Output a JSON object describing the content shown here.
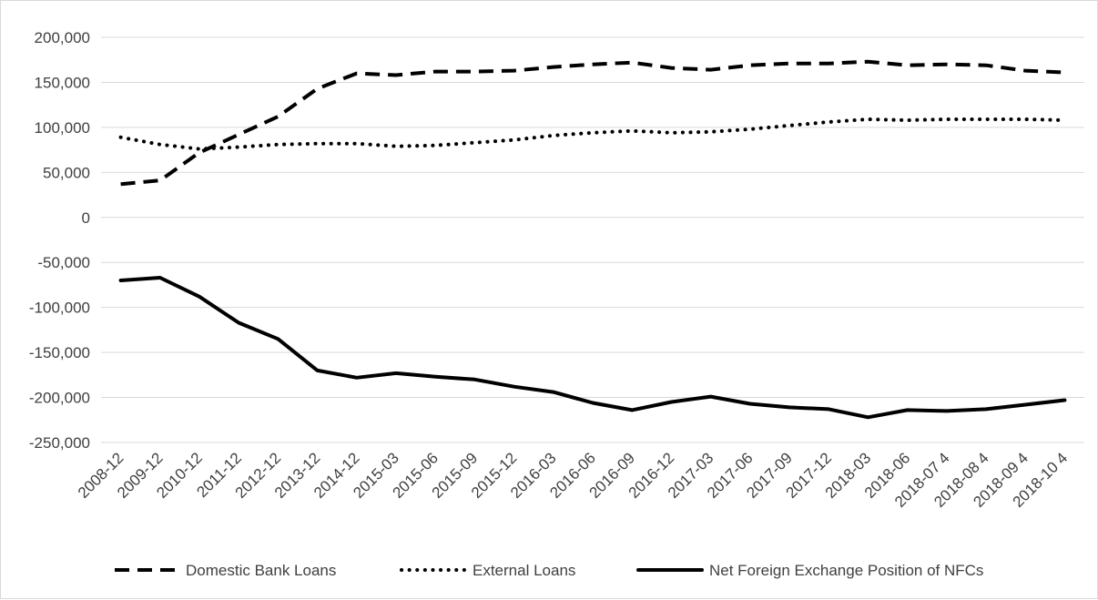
{
  "chart_data": {
    "type": "line",
    "title": "",
    "xlabel": "",
    "ylabel": "",
    "ylim": [
      -250000,
      200000
    ],
    "yticks": [
      200000,
      150000,
      100000,
      50000,
      0,
      -50000,
      -100000,
      -150000,
      -200000,
      -250000
    ],
    "ytick_labels": [
      "200,000",
      "150,000",
      "100,000",
      "50,000",
      "0",
      "-50,000",
      "-100,000",
      "-150,000",
      "-200,000",
      "-250,000"
    ],
    "grid": true,
    "legend_position": "bottom",
    "categories": [
      "2008-12",
      "2009-12",
      "2010-12",
      "2011-12",
      "2012-12",
      "2013-12",
      "2014-12",
      "2015-03",
      "2015-06",
      "2015-09",
      "2015-12",
      "2016-03",
      "2016-06",
      "2016-09",
      "2016-12",
      "2017-03",
      "2017-06",
      "2017-09",
      "2017-12",
      "2018-03",
      "2018-06",
      "2018-07 4",
      "2018-08 4",
      "2018-09 4",
      "2018-10 4"
    ],
    "series": [
      {
        "name": "Domestic Bank Loans",
        "style": "dashed",
        "color": "#000000",
        "values": [
          37000,
          41000,
          72000,
          92000,
          112000,
          143000,
          160000,
          158000,
          162000,
          162000,
          163000,
          167000,
          170000,
          172000,
          166000,
          164000,
          169000,
          171000,
          171000,
          173000,
          169000,
          170000,
          169000,
          163000,
          161000
        ]
      },
      {
        "name": "External Loans",
        "style": "dotted",
        "color": "#000000",
        "values": [
          89000,
          81000,
          76000,
          78000,
          81000,
          82000,
          82000,
          79000,
          80000,
          83000,
          86000,
          91000,
          94000,
          96000,
          94000,
          95000,
          98000,
          102000,
          106000,
          109000,
          108000,
          109000,
          109000,
          109000,
          108000
        ]
      },
      {
        "name": "Net Foreign Exchange Position of NFCs",
        "style": "solid",
        "color": "#000000",
        "values": [
          -70000,
          -67000,
          -88000,
          -117000,
          -135000,
          -170000,
          -178000,
          -173000,
          -177000,
          -180000,
          -188000,
          -194000,
          -206000,
          -214000,
          -205000,
          -199000,
          -207000,
          -211000,
          -213000,
          -222000,
          -214000,
          -215000,
          -213000,
          -208000,
          -203000
        ]
      }
    ]
  }
}
